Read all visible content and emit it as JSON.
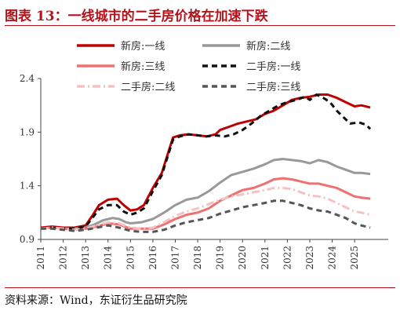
{
  "header": {
    "title": "图表 13：一线城市的二手房价格在加速下跌"
  },
  "footer": {
    "source": "资料来源：Wind，东证衍生品研究院"
  },
  "chart_data": {
    "type": "line",
    "title": "图表 13：一线城市的二手房价格在加速下跌",
    "xlabel": "",
    "ylabel": "",
    "xlim": [
      2011.0,
      2025.8
    ],
    "ylim": [
      0.9,
      2.4
    ],
    "yticks": [
      "0.9",
      "1.4",
      "1.9",
      "2.4"
    ],
    "xticks": [
      "2011",
      "2012",
      "2013",
      "2014",
      "2015",
      "2016",
      "2017",
      "2018",
      "2019",
      "2020",
      "2021",
      "2022",
      "2023",
      "2024",
      "2025"
    ],
    "grid": false,
    "legend_position": "top",
    "series": [
      {
        "name": "新房:一线",
        "color": "#c00000",
        "dash": "solid",
        "x": [
          2011.0,
          2011.5,
          2012.0,
          2012.5,
          2013.0,
          2013.3,
          2013.6,
          2014.0,
          2014.4,
          2014.7,
          2015.0,
          2015.3,
          2015.6,
          2016.0,
          2016.4,
          2016.7,
          2016.9,
          2017.2,
          2017.6,
          2018.0,
          2018.4,
          2018.8,
          2019.0,
          2019.4,
          2019.8,
          2020.2,
          2020.6,
          2021.0,
          2021.4,
          2021.8,
          2022.2,
          2022.6,
          2023.0,
          2023.4,
          2023.8,
          2024.2,
          2024.6,
          2025.0,
          2025.3,
          2025.7
        ],
        "y": [
          1.01,
          1.02,
          1.01,
          1.01,
          1.03,
          1.12,
          1.22,
          1.27,
          1.28,
          1.22,
          1.17,
          1.18,
          1.22,
          1.38,
          1.52,
          1.72,
          1.85,
          1.87,
          1.88,
          1.87,
          1.86,
          1.88,
          1.92,
          1.95,
          1.98,
          2.0,
          2.02,
          2.07,
          2.1,
          2.15,
          2.2,
          2.22,
          2.23,
          2.25,
          2.25,
          2.22,
          2.18,
          2.14,
          2.15,
          2.13
        ]
      },
      {
        "name": "新房:二线",
        "color": "#999999",
        "dash": "solid",
        "x": [
          2011.0,
          2011.5,
          2012.0,
          2012.5,
          2013.0,
          2013.4,
          2013.8,
          2014.2,
          2014.5,
          2014.8,
          2015.0,
          2015.5,
          2016.0,
          2016.5,
          2017.0,
          2017.5,
          2018.0,
          2018.5,
          2019.0,
          2019.5,
          2020.0,
          2020.5,
          2021.0,
          2021.4,
          2021.8,
          2022.2,
          2022.6,
          2023.0,
          2023.4,
          2023.8,
          2024.2,
          2024.6,
          2025.0,
          2025.3,
          2025.7
        ],
        "y": [
          1.0,
          1.01,
          1.0,
          1.0,
          1.01,
          1.04,
          1.08,
          1.1,
          1.09,
          1.06,
          1.05,
          1.06,
          1.09,
          1.15,
          1.22,
          1.27,
          1.29,
          1.35,
          1.43,
          1.5,
          1.53,
          1.56,
          1.6,
          1.64,
          1.65,
          1.64,
          1.63,
          1.61,
          1.64,
          1.62,
          1.58,
          1.55,
          1.52,
          1.52,
          1.51
        ]
      },
      {
        "name": "新房:三线",
        "color": "#f07070",
        "dash": "solid",
        "x": [
          2011.0,
          2011.5,
          2012.0,
          2012.5,
          2013.0,
          2013.5,
          2014.0,
          2014.5,
          2015.0,
          2015.5,
          2016.0,
          2016.5,
          2017.0,
          2017.5,
          2018.0,
          2018.5,
          2019.0,
          2019.5,
          2020.0,
          2020.5,
          2021.0,
          2021.4,
          2021.8,
          2022.2,
          2022.6,
          2023.0,
          2023.4,
          2023.8,
          2024.2,
          2024.6,
          2025.0,
          2025.3,
          2025.7
        ],
        "y": [
          1.0,
          1.01,
          1.0,
          0.99,
          1.0,
          1.02,
          1.05,
          1.04,
          1.0,
          1.0,
          1.0,
          1.04,
          1.09,
          1.13,
          1.15,
          1.19,
          1.26,
          1.31,
          1.36,
          1.38,
          1.42,
          1.46,
          1.47,
          1.46,
          1.44,
          1.42,
          1.42,
          1.4,
          1.38,
          1.34,
          1.3,
          1.29,
          1.28
        ]
      },
      {
        "name": "二手房:一线",
        "color": "#111111",
        "dash": "dash",
        "x": [
          2011.0,
          2011.5,
          2012.0,
          2012.5,
          2013.0,
          2013.3,
          2013.6,
          2014.0,
          2014.4,
          2014.7,
          2015.0,
          2015.3,
          2015.6,
          2016.0,
          2016.4,
          2016.7,
          2016.9,
          2017.2,
          2017.6,
          2018.0,
          2018.4,
          2018.8,
          2019.2,
          2019.6,
          2020.0,
          2020.4,
          2020.8,
          2021.2,
          2021.6,
          2022.0,
          2022.4,
          2022.8,
          2023.0,
          2023.3,
          2023.6,
          2023.9,
          2024.2,
          2024.5,
          2024.8,
          2025.2,
          2025.5,
          2025.7
        ],
        "y": [
          1.0,
          1.01,
          1.0,
          1.0,
          1.02,
          1.1,
          1.18,
          1.22,
          1.22,
          1.16,
          1.13,
          1.15,
          1.19,
          1.35,
          1.5,
          1.7,
          1.83,
          1.86,
          1.88,
          1.87,
          1.86,
          1.87,
          1.86,
          1.88,
          1.92,
          1.98,
          2.05,
          2.1,
          2.15,
          2.18,
          2.2,
          2.23,
          2.2,
          2.25,
          2.22,
          2.18,
          2.1,
          2.04,
          1.98,
          1.99,
          1.97,
          1.93
        ]
      },
      {
        "name": "二手房:二线",
        "color": "#f4c2c2",
        "dash": "dashdot",
        "x": [
          2011.0,
          2011.5,
          2012.0,
          2012.5,
          2013.0,
          2013.5,
          2014.0,
          2014.5,
          2015.0,
          2015.5,
          2016.0,
          2016.5,
          2017.0,
          2017.5,
          2018.0,
          2018.5,
          2019.0,
          2019.5,
          2020.0,
          2020.5,
          2021.0,
          2021.4,
          2021.8,
          2022.2,
          2022.6,
          2023.0,
          2023.4,
          2023.8,
          2024.2,
          2024.6,
          2025.0,
          2025.3,
          2025.7
        ],
        "y": [
          1.0,
          1.01,
          1.0,
          0.99,
          1.0,
          1.03,
          1.06,
          1.05,
          1.01,
          1.0,
          1.01,
          1.06,
          1.12,
          1.16,
          1.19,
          1.23,
          1.27,
          1.3,
          1.32,
          1.34,
          1.36,
          1.38,
          1.38,
          1.37,
          1.34,
          1.31,
          1.3,
          1.28,
          1.24,
          1.2,
          1.16,
          1.15,
          1.13
        ]
      },
      {
        "name": "二手房:三线",
        "color": "#555555",
        "dash": "dash",
        "x": [
          2011.0,
          2011.5,
          2012.0,
          2012.5,
          2013.0,
          2013.5,
          2014.0,
          2014.5,
          2015.0,
          2015.5,
          2016.0,
          2016.5,
          2017.0,
          2017.5,
          2018.0,
          2018.5,
          2019.0,
          2019.5,
          2020.0,
          2020.5,
          2021.0,
          2021.4,
          2021.8,
          2022.2,
          2022.6,
          2023.0,
          2023.4,
          2023.8,
          2024.2,
          2024.6,
          2025.0,
          2025.3,
          2025.7
        ],
        "y": [
          1.0,
          1.0,
          0.99,
          0.98,
          0.99,
          1.01,
          1.03,
          1.01,
          0.98,
          0.97,
          0.97,
          0.99,
          1.03,
          1.06,
          1.08,
          1.1,
          1.14,
          1.17,
          1.2,
          1.22,
          1.24,
          1.26,
          1.26,
          1.24,
          1.22,
          1.19,
          1.17,
          1.16,
          1.13,
          1.1,
          1.05,
          1.03,
          1.01
        ]
      }
    ]
  }
}
